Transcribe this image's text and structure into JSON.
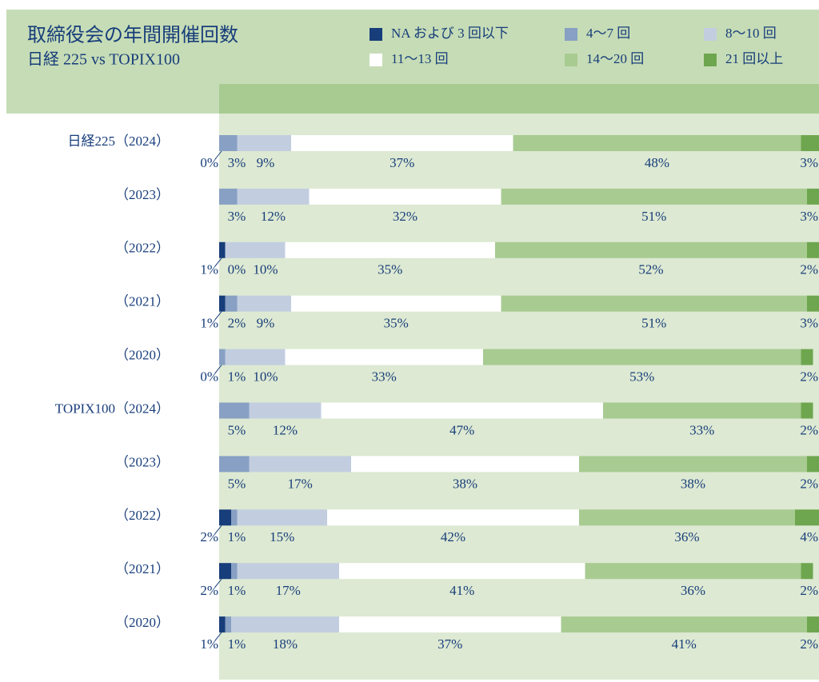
{
  "chart_data": {
    "type": "stacked-bar-horizontal",
    "title": "取締役会の年間開催回数",
    "subtitle": "日経 225 vs TOPIX100",
    "categories": [
      "日経225（2024）",
      "（2023）",
      "（2022）",
      "（2021）",
      "（2020）",
      "TOPIX100（2024）",
      "（2023）",
      "（2022）",
      "（2021）",
      "（2020）"
    ],
    "xlim": [
      0,
      100
    ],
    "series": [
      {
        "name": "NA および 3 回以下",
        "color": "#173d7a",
        "values": [
          0,
          null,
          1,
          1,
          0,
          null,
          null,
          2,
          2,
          1
        ],
        "value_labels": [
          "0%",
          null,
          "1%",
          "1%",
          "0%",
          null,
          null,
          "2%",
          "2%",
          "1%"
        ]
      },
      {
        "name": "4～7 回",
        "color": "#87a0c3",
        "values": [
          3,
          3,
          0,
          2,
          1,
          5,
          5,
          1,
          1,
          1
        ],
        "value_labels": [
          "3%",
          "3%",
          "0%",
          "2%",
          "1%",
          "5%",
          "5%",
          "1%",
          "1%",
          "1%"
        ]
      },
      {
        "name": "8～10 回",
        "color": "#c2cee0",
        "values": [
          9,
          12,
          10,
          9,
          10,
          12,
          17,
          15,
          17,
          18
        ],
        "value_labels": [
          "9%",
          "12%",
          "10%",
          "9%",
          "10%",
          "12%",
          "17%",
          "15%",
          "17%",
          "18%"
        ]
      },
      {
        "name": "11～13 回",
        "color": "#ffffff",
        "values": [
          37,
          32,
          35,
          35,
          33,
          47,
          38,
          42,
          41,
          37
        ],
        "value_labels": [
          "37%",
          "32%",
          "35%",
          "35%",
          "33%",
          "47%",
          "38%",
          "42%",
          "41%",
          "37%"
        ]
      },
      {
        "name": "14～20 回",
        "color": "#a8cb92",
        "values": [
          48,
          51,
          52,
          51,
          53,
          33,
          38,
          36,
          36,
          41
        ],
        "value_labels": [
          "48%",
          "51%",
          "52%",
          "51%",
          "53%",
          "33%",
          "38%",
          "36%",
          "36%",
          "41%"
        ]
      },
      {
        "name": "21 回以上",
        "color": "#6ea64f",
        "values": [
          3,
          3,
          2,
          3,
          2,
          2,
          2,
          4,
          2,
          2
        ],
        "value_labels": [
          "3%",
          "3%",
          "2%",
          "3%",
          "2%",
          "2%",
          "2%",
          "4%",
          "2%",
          "2%"
        ]
      }
    ]
  }
}
